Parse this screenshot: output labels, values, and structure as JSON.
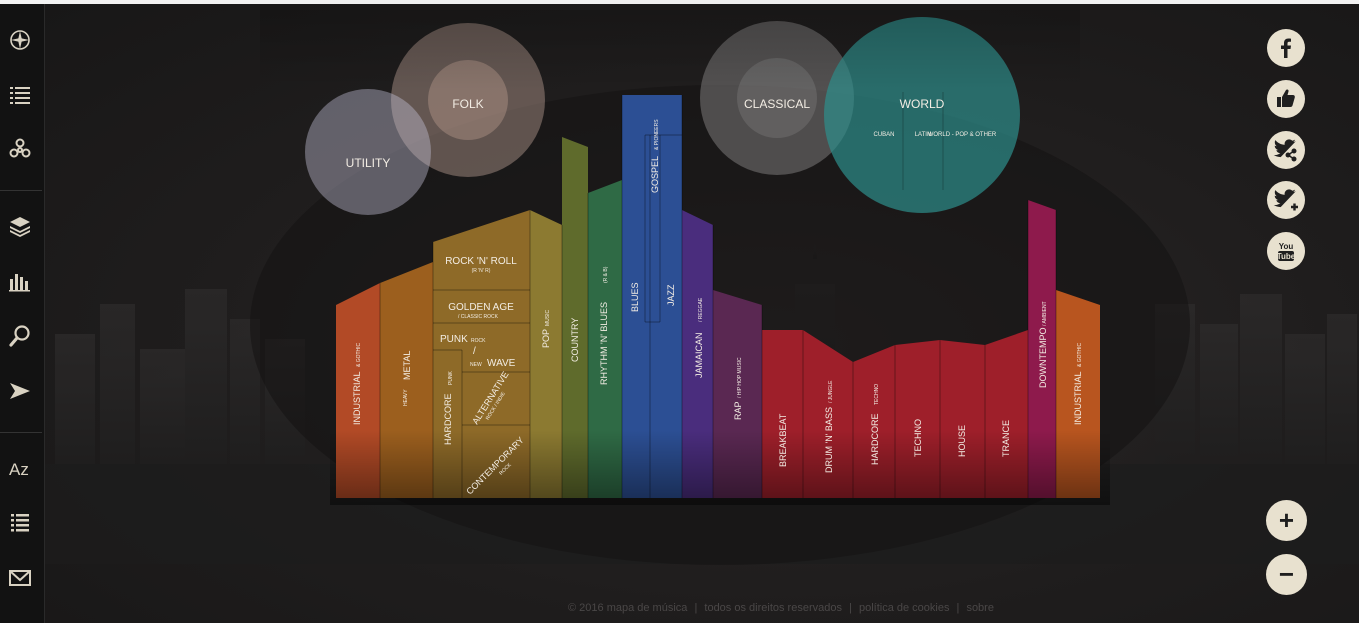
{
  "sidebar": {
    "top_icons": [
      "compass-icon",
      "list-icon",
      "network-icon"
    ],
    "mid_icons": [
      "layers-icon",
      "bar-chart-icon",
      "search-icon",
      "arrow-icon"
    ],
    "bottom_icons": [
      "az-icon",
      "index-list-icon",
      "mail-icon"
    ]
  },
  "bubbles": {
    "folk": "FOLK",
    "utility": "UTILITY",
    "classical": "CLASSICAL",
    "world": "WORLD",
    "world_sub": {
      "cuban": "CUBAN",
      "latin": "LATIN",
      "other": "WORLD - POP & OTHER"
    }
  },
  "genres": {
    "industrial_left": {
      "main": "INDUSTRIAL",
      "sub": "& GOTHIC",
      "color": "#b24a26"
    },
    "metal": {
      "main": "METAL",
      "sub": "HEAVY",
      "color": "#9c5f1e"
    },
    "rock_n_roll": {
      "main": "ROCK 'N' ROLL",
      "sub": "(R 'N' R)"
    },
    "golden_age": {
      "main": "GOLDEN AGE",
      "sub": "/ CLASSIC ROCK"
    },
    "punk": {
      "main": "PUNK",
      "sub": "ROCK"
    },
    "slash": "/",
    "new_wave": {
      "main": "WAVE",
      "sub": "NEW"
    },
    "hardcore_punk": {
      "main": "HARDCORE",
      "sub": "PUNK"
    },
    "alternative": {
      "main": "ALTERNATIVE",
      "sub": "ROCK / INDIE"
    },
    "contemporary": {
      "main": "CONTEMPORARY",
      "sub": "ROCK"
    },
    "pop": {
      "main": "POP",
      "sub": "MUSIC",
      "color": "#8c7a31"
    },
    "country": {
      "main": "COUNTRY",
      "color": "#5f6b2c"
    },
    "rnb": {
      "main": "RHYTHM 'N' BLUES",
      "sub": "(R & B)",
      "color": "#2f6a45"
    },
    "blues": {
      "main": "BLUES",
      "color": "#2c4f94"
    },
    "gospel": {
      "main": "GOSPEL",
      "sub": "& PIONEERS"
    },
    "jazz": {
      "main": "JAZZ"
    },
    "jamaican": {
      "main": "JAMAICAN",
      "sub": "/ REGGAE",
      "color": "#4a2d7d"
    },
    "rap": {
      "main": "RAP",
      "sub": "/ HIP HOP MUSIC",
      "color": "#5a2852"
    },
    "breakbeat": {
      "main": "BREAKBEAT",
      "color": "#9e1f2a"
    },
    "drum_n_bass": {
      "main": "DRUM 'N' BASS",
      "sub": "/ JUNGLE"
    },
    "hardcore_techno": {
      "main": "HARDCORE",
      "sub": "TECHNO"
    },
    "techno": {
      "main": "TECHNO"
    },
    "house": {
      "main": "HOUSE"
    },
    "trance": {
      "main": "TRANCE"
    },
    "downtempo": {
      "main": "DOWNTEMPO",
      "sub": "/ AMBIENT",
      "color": "#8e1a4c"
    },
    "industrial_right": {
      "main": "INDUSTRIAL",
      "sub": "& GOTHIC",
      "color": "#b8551f"
    }
  },
  "social": [
    "facebook-icon",
    "thumbs-up-icon",
    "share-icon",
    "twitter-follow-icon",
    "youtube-icon"
  ],
  "zoom": {
    "in": "+",
    "out": "−"
  },
  "footer": {
    "copyright": "© 2016 mapa de música",
    "sep": "|",
    "rights": "todos os direitos reservados",
    "cookies": "política de cookies",
    "about": "sobre"
  }
}
